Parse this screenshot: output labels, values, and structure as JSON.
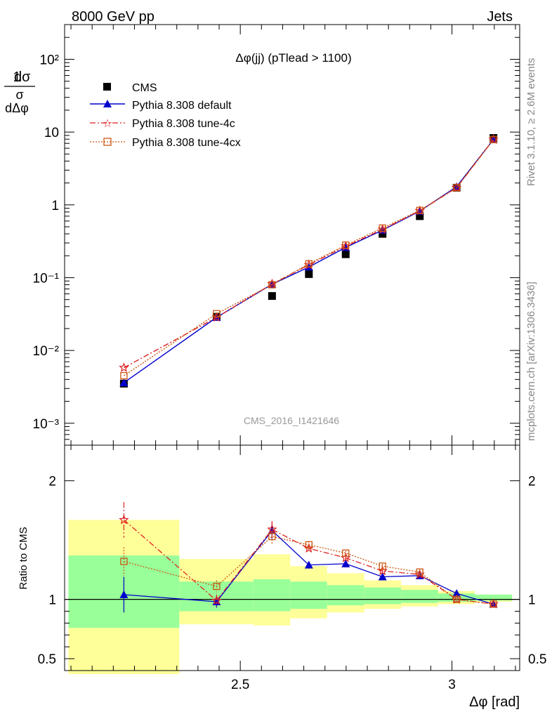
{
  "header": {
    "left": "8000 GeV pp",
    "right": "Jets"
  },
  "side_text": {
    "rivet": "Rivet 3.1.10, ≥ 2.6M events",
    "mcplots": "mcplots.cern.ch [arXiv:1306.3436]"
  },
  "plot_title": "Δφ(jj) (pTlead >  1100)",
  "watermark": "CMS_2016_I1421646",
  "legend": [
    "CMS",
    "Pythia 8.308 default",
    "Pythia 8.308 tune-4c",
    "Pythia 8.308 tune-4cx"
  ],
  "colors": {
    "data": "#000000",
    "default": "#0000cc",
    "tune4c": "#dd2222",
    "tune4cx": "#cc5511",
    "band_inner": "#99ff99",
    "band_outer": "#ffff99"
  },
  "chart_data": [
    {
      "type": "line",
      "panel": "main",
      "ylabel": "1/σ dσ/dΔφ [rad⁻¹]",
      "yscale": "log",
      "ylim": [
        0.0005,
        300
      ],
      "xlim": [
        2.085,
        3.16
      ],
      "yticks": [
        "10⁻³",
        "10⁻²",
        "10⁻¹",
        "1",
        "10",
        "10²"
      ],
      "x": [
        2.225,
        2.444,
        2.575,
        2.662,
        2.749,
        2.836,
        2.924,
        3.011,
        3.098
      ],
      "series": [
        {
          "name": "CMS",
          "values": [
            0.0035,
            0.029,
            0.056,
            0.112,
            0.21,
            0.4,
            0.7,
            1.72,
            8.3
          ],
          "errors": [
            0.0003,
            0.001,
            0.003,
            0.004,
            0.007,
            0.01,
            0.02,
            0.04,
            0.2
          ]
        },
        {
          "name": "Pythia 8.308 default",
          "values": [
            0.0036,
            0.0285,
            0.081,
            0.14,
            0.26,
            0.45,
            0.82,
            1.78,
            7.9
          ]
        },
        {
          "name": "Pythia 8.308 tune-4c",
          "values": [
            0.0058,
            0.0285,
            0.082,
            0.15,
            0.27,
            0.46,
            0.83,
            1.72,
            7.9
          ]
        },
        {
          "name": "Pythia 8.308 tune-4cx",
          "values": [
            0.0045,
            0.032,
            0.08,
            0.155,
            0.28,
            0.48,
            0.84,
            1.72,
            7.9
          ]
        }
      ]
    },
    {
      "type": "line",
      "panel": "ratio",
      "xlabel": "Δφ [rad]",
      "ylabel": "Ratio to CMS",
      "ylim": [
        0.4,
        2.3
      ],
      "xlim": [
        2.085,
        3.16
      ],
      "xticks": [
        "2.5",
        "3"
      ],
      "yticks": [
        "0.5",
        "1",
        "2"
      ],
      "x": [
        2.225,
        2.444,
        2.575,
        2.662,
        2.749,
        2.836,
        2.924,
        3.011,
        3.098
      ],
      "bands": {
        "edges": [
          2.094,
          2.356,
          2.531,
          2.618,
          2.705,
          2.793,
          2.88,
          2.967,
          3.054,
          3.142
        ],
        "inner_low": [
          0.76,
          0.9,
          0.9,
          0.92,
          0.95,
          0.96,
          0.97,
          0.98,
          0.99
        ],
        "inner_high": [
          1.37,
          1.15,
          1.17,
          1.15,
          1.12,
          1.1,
          1.08,
          1.05,
          1.04
        ],
        "outer_low": [
          0.37,
          0.79,
          0.78,
          0.84,
          0.89,
          0.92,
          0.94,
          0.96,
          0.98
        ],
        "outer_high": [
          1.67,
          1.34,
          1.38,
          1.28,
          1.22,
          1.16,
          1.12,
          1.07,
          1.04
        ]
      },
      "series": [
        {
          "name": "Pythia 8.308 default",
          "values": [
            1.04,
            0.98,
            1.58,
            1.29,
            1.3,
            1.19,
            1.2,
            1.05,
            0.96
          ],
          "errors": [
            0.15,
            0.05,
            0.07,
            0.03,
            0.02,
            0.02,
            0.02,
            0.01,
            0.01
          ]
        },
        {
          "name": "Pythia 8.308 tune-4c",
          "values": [
            1.67,
            0.99,
            1.59,
            1.43,
            1.35,
            1.24,
            1.21,
            1.0,
            0.96
          ],
          "errors": [
            0.15,
            0.05,
            0.07,
            0.03,
            0.02,
            0.02,
            0.02,
            0.01,
            0.01
          ]
        },
        {
          "name": "Pythia 8.308 tune-4cx",
          "values": [
            1.32,
            1.11,
            1.53,
            1.46,
            1.39,
            1.28,
            1.23,
            1.0,
            0.96
          ],
          "errors": [
            0.12,
            0.05,
            0.07,
            0.03,
            0.02,
            0.02,
            0.02,
            0.01,
            0.01
          ]
        }
      ]
    }
  ]
}
